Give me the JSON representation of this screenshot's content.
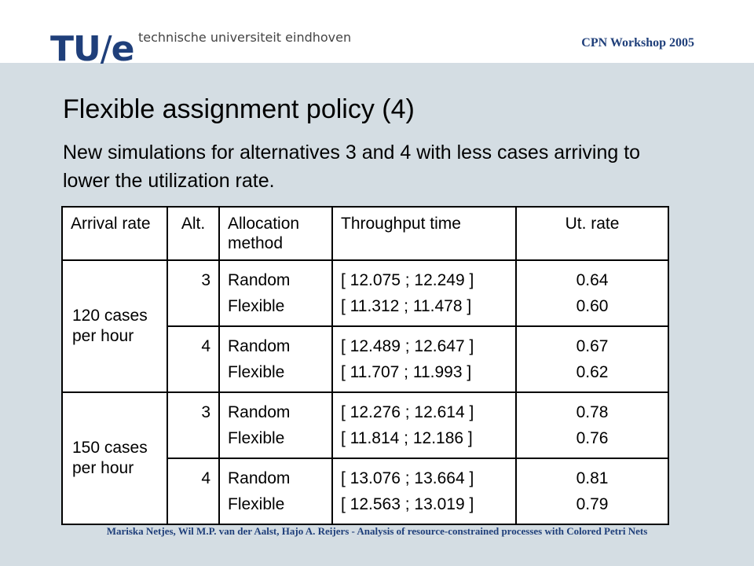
{
  "header": {
    "logo_tu": "TU",
    "logo_slash": "/",
    "logo_e": "e",
    "university": "technische universiteit eindhoven",
    "workshop": "CPN Workshop 2005"
  },
  "slide": {
    "title": "Flexible assignment policy (4)",
    "subtitle": "New simulations for alternatives 3 and 4 with less cases arriving to lower the utilization rate."
  },
  "table": {
    "headers": [
      "Arrival rate",
      "Alt.",
      "Allocation method",
      "Throughput time",
      "Ut. rate"
    ],
    "groups": [
      {
        "arrival_rate": "120 cases per hour",
        "rows": [
          {
            "alt": "3",
            "methods": [
              "Random",
              "Flexible"
            ],
            "throughput": [
              "[ 12.075 ; 12.249 ]",
              "[ 11.312 ; 11.478 ]"
            ],
            "ut_rate": [
              "0.64",
              "0.60"
            ]
          },
          {
            "alt": "4",
            "methods": [
              "Random",
              "Flexible"
            ],
            "throughput": [
              "[ 12.489 ; 12.647 ]",
              "[ 11.707 ; 11.993 ]"
            ],
            "ut_rate": [
              "0.67",
              "0.62"
            ]
          }
        ]
      },
      {
        "arrival_rate": "150 cases per hour",
        "rows": [
          {
            "alt": "3",
            "methods": [
              "Random",
              "Flexible"
            ],
            "throughput": [
              "[ 12.276 ; 12.614 ]",
              "[ 11.814 ; 12.186 ]"
            ],
            "ut_rate": [
              "0.78",
              "0.76"
            ]
          },
          {
            "alt": "4",
            "methods": [
              "Random",
              "Flexible"
            ],
            "throughput": [
              "[ 13.076 ; 13.664 ]",
              "[ 12.563 ; 13.019 ]"
            ],
            "ut_rate": [
              "0.81",
              "0.79"
            ]
          }
        ]
      }
    ]
  },
  "footer": {
    "text": "Mariska Netjes, Wil M.P. van der Aalst, Hajo A. Reijers - Analysis of resource-constrained processes with Colored Petri Nets"
  }
}
